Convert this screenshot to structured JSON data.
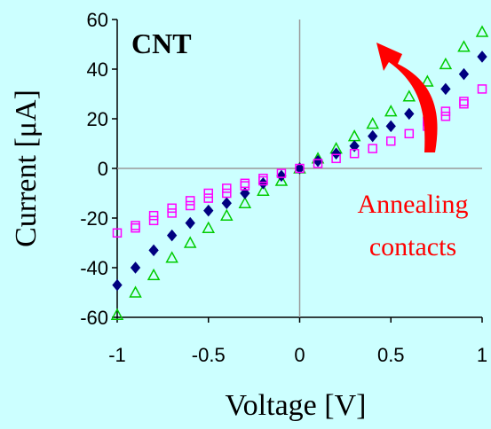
{
  "chart_data": {
    "type": "scatter",
    "title": "",
    "panel_label": "CNT",
    "xlabel": "Voltage [V]",
    "ylabel": "Current [μA]",
    "xlim": [
      -1,
      1
    ],
    "ylim": [
      -60,
      60
    ],
    "x_ticks": [
      "-1",
      "-0.5",
      "0",
      "0.5",
      "1"
    ],
    "y_ticks": [
      "60",
      "40",
      "20",
      "0",
      "-20",
      "-40",
      "-60"
    ],
    "grid": false,
    "annotation": {
      "lines": [
        "Annealing",
        "contacts"
      ],
      "arrow_color": "#ff0000"
    },
    "series": [
      {
        "marker": "triangle-open",
        "color": "#00cc00",
        "x": [
          -1.0,
          -0.9,
          -0.8,
          -0.7,
          -0.6,
          -0.5,
          -0.4,
          -0.3,
          -0.2,
          -0.1,
          0.0,
          0.1,
          0.2,
          0.3,
          0.4,
          0.5,
          0.6,
          0.7,
          0.8,
          0.9,
          1.0
        ],
        "y": [
          -59,
          -50,
          -43,
          -36,
          -30,
          -24,
          -19,
          -14,
          -9,
          -5,
          0,
          4,
          8,
          13,
          18,
          23,
          29,
          35,
          42,
          49,
          55
        ]
      },
      {
        "marker": "diamond-filled",
        "color": "#000080",
        "x": [
          -1.0,
          -0.9,
          -0.8,
          -0.7,
          -0.6,
          -0.5,
          -0.4,
          -0.3,
          -0.2,
          -0.1,
          0.0,
          0.1,
          0.2,
          0.3,
          0.4,
          0.5,
          0.6,
          0.7,
          0.8,
          0.9,
          1.0
        ],
        "y": [
          -47,
          -40,
          -33,
          -27,
          -22,
          -17,
          -14,
          -10,
          -6,
          -3,
          0,
          3,
          6,
          9,
          13,
          17,
          22,
          27,
          32,
          38,
          45
        ]
      },
      {
        "marker": "square-open",
        "color": "#ff00ff",
        "x": [
          -1.0,
          -0.9,
          -0.9,
          -0.8,
          -0.8,
          -0.7,
          -0.7,
          -0.6,
          -0.6,
          -0.5,
          -0.5,
          -0.4,
          -0.4,
          -0.3,
          -0.3,
          -0.2,
          -0.2,
          -0.1,
          0.0,
          0.1,
          0.2,
          0.3,
          0.4,
          0.5,
          0.6,
          0.7,
          0.7,
          0.8,
          0.8,
          0.9,
          0.9,
          1.0
        ],
        "y": [
          -26,
          -23,
          -24,
          -19,
          -21,
          -16,
          -18,
          -13,
          -15,
          -10,
          -12,
          -8,
          -10,
          -6,
          -7,
          -4,
          -5,
          -2,
          0,
          2,
          4,
          6,
          8,
          11,
          14,
          17,
          19,
          21,
          23,
          26,
          27,
          32
        ]
      }
    ]
  }
}
